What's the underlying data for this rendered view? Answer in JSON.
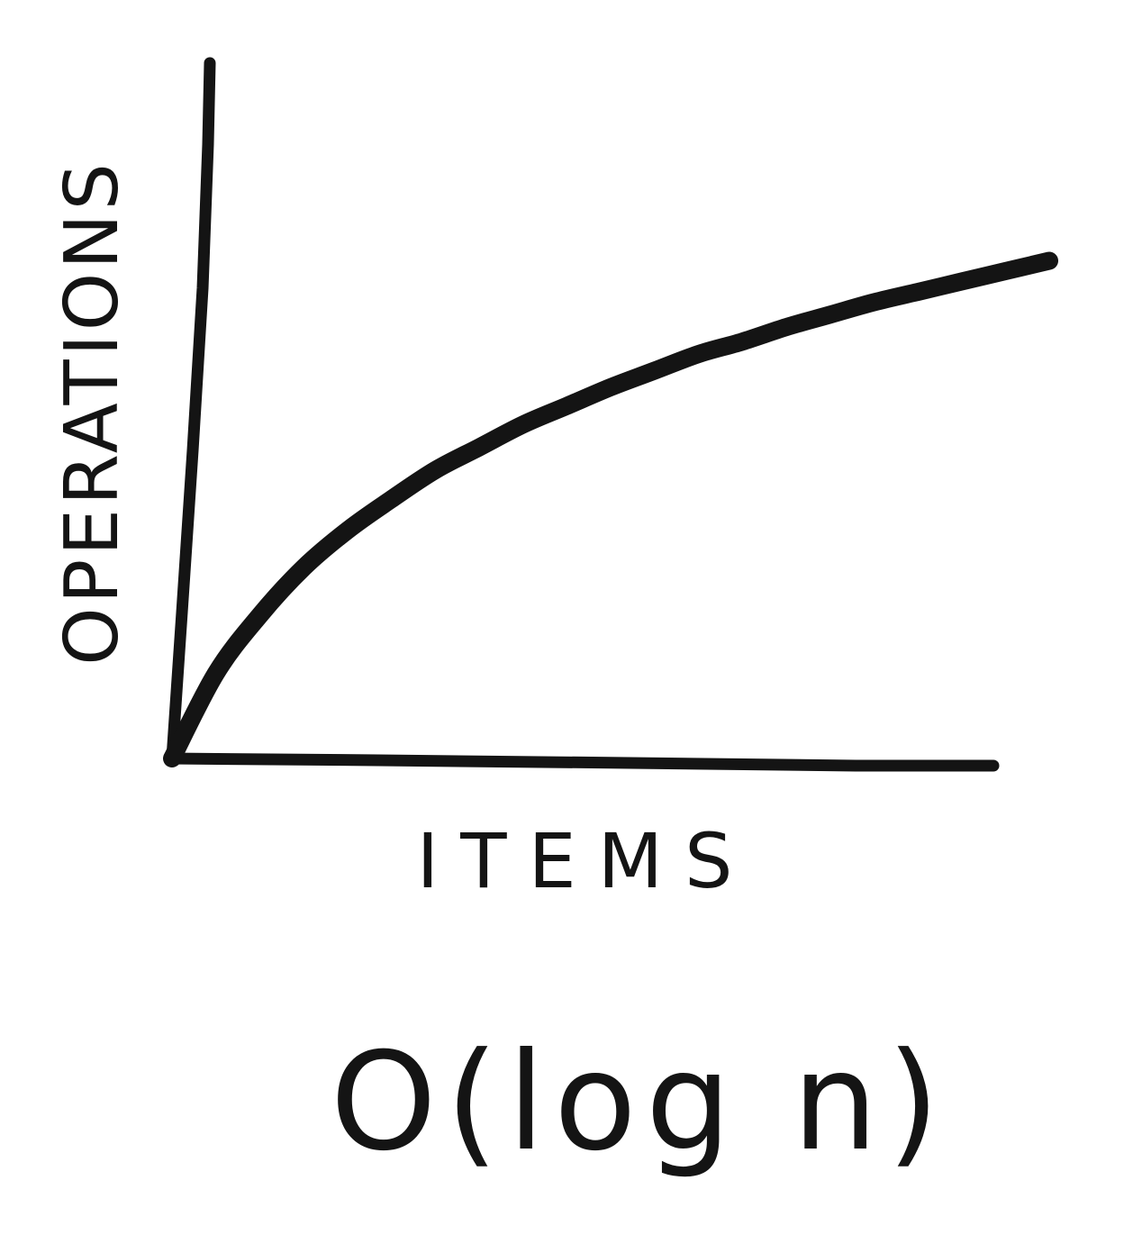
{
  "chart_data": {
    "type": "line",
    "title": "",
    "caption": "O(log n)",
    "xlabel": "ITEMS",
    "ylabel": "OPERATIONS",
    "grid": false,
    "legend": "none",
    "series": [
      {
        "x": [
          0,
          0.5,
          1,
          1.5,
          2,
          2.5,
          3,
          3.5,
          4,
          4.5,
          5,
          5.5,
          6,
          6.5,
          7,
          7.5,
          8,
          8.5,
          9,
          9.5,
          10
        ],
        "values": [
          0,
          0.41,
          0.69,
          0.92,
          1.1,
          1.25,
          1.39,
          1.5,
          1.61,
          1.7,
          1.79,
          1.87,
          1.95,
          2.01,
          2.08,
          2.14,
          2.2,
          2.25,
          2.3,
          2.35,
          2.4
        ]
      }
    ]
  },
  "colors": {
    "ink": "#141414",
    "paper": "#ffffff"
  }
}
